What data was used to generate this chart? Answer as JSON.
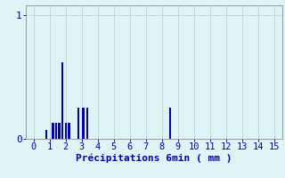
{
  "xlabel": "Précipitations 6min ( mm )",
  "xlim": [
    -0.5,
    15.5
  ],
  "ylim": [
    0,
    1.08
  ],
  "yticks": [
    0,
    1
  ],
  "xticks": [
    0,
    1,
    2,
    3,
    4,
    5,
    6,
    7,
    8,
    9,
    10,
    11,
    12,
    13,
    14,
    15
  ],
  "bar_positions": [
    0.8,
    1.2,
    1.4,
    1.6,
    1.8,
    2.0,
    2.2,
    2.8,
    3.1,
    3.35,
    8.5
  ],
  "bar_heights": [
    0.07,
    0.13,
    0.13,
    0.13,
    0.62,
    0.13,
    0.13,
    0.25,
    0.25,
    0.25,
    0.25
  ],
  "bar_width": 0.13,
  "bar_color": "#0000bb",
  "bg_color": "#dff4f4",
  "grid_color": "#b8d4d4",
  "spine_color": "#999999",
  "tick_color": "#0000bb",
  "label_color": "#0000bb",
  "label_fontsize": 7.5
}
